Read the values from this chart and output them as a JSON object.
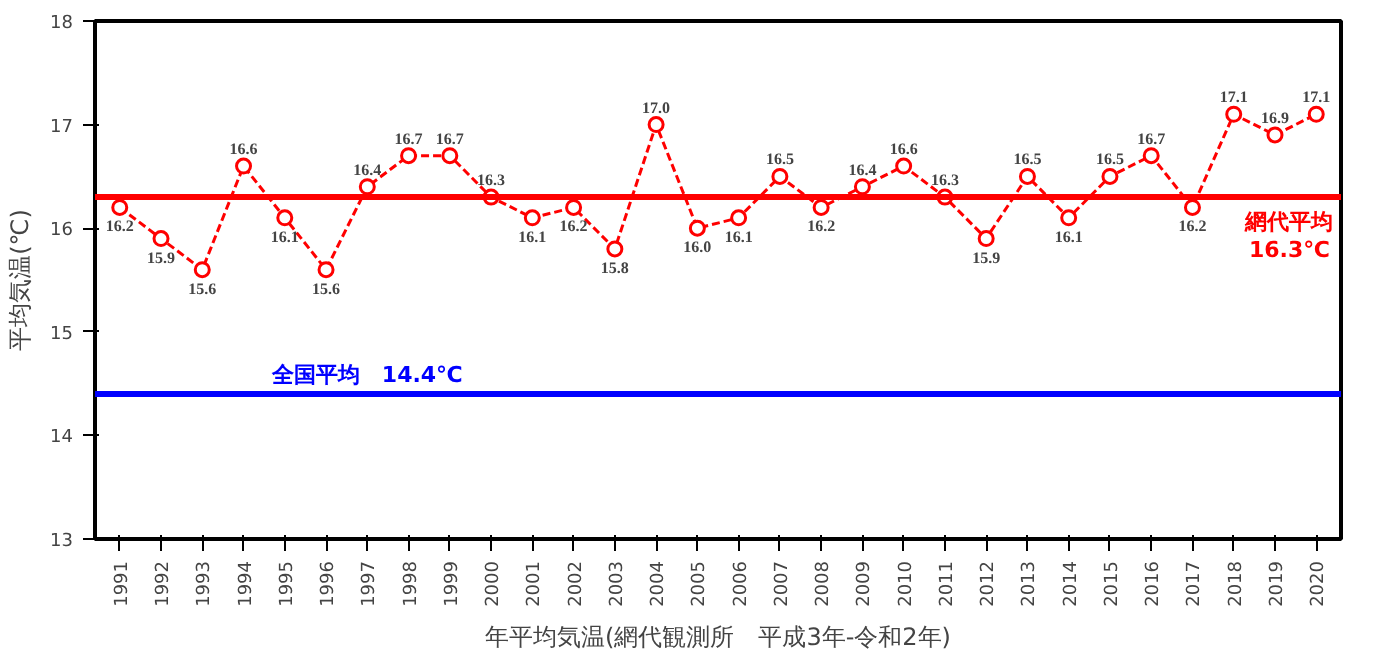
{
  "chart_data": {
    "type": "line",
    "xlabel": "年平均気温(網代観測所　平成3年-令和2年)",
    "ylabel": "平均気温(℃)",
    "categories": [
      "1991",
      "1992",
      "1993",
      "1994",
      "1995",
      "1996",
      "1997",
      "1998",
      "1999",
      "2000",
      "2001",
      "2002",
      "2003",
      "2004",
      "2005",
      "2006",
      "2007",
      "2008",
      "2009",
      "2010",
      "2011",
      "2012",
      "2013",
      "2014",
      "2015",
      "2016",
      "2017",
      "2018",
      "2019",
      "2020"
    ],
    "series": [
      {
        "color": "#ff0000",
        "values": [
          16.2,
          15.9,
          15.6,
          16.6,
          16.1,
          15.6,
          16.4,
          16.7,
          16.7,
          16.3,
          16.1,
          16.2,
          15.8,
          17.0,
          16.0,
          16.1,
          16.5,
          16.2,
          16.4,
          16.6,
          16.3,
          15.9,
          16.5,
          16.1,
          16.5,
          16.7,
          16.2,
          17.1,
          16.9,
          17.1
        ],
        "value_labels": [
          "16.2",
          "15.9",
          "15.6",
          "16.6",
          "16.1",
          "15.6",
          "16.4",
          "16.7",
          "16.7",
          "16.3",
          "16.1",
          "16.2",
          "15.8",
          "17.0",
          "16.0",
          "16.1",
          "16.5",
          "16.2",
          "16.4",
          "16.6",
          "16.3",
          "15.9",
          "16.5",
          "16.1",
          "16.5",
          "16.7",
          "16.2",
          "17.1",
          "16.9",
          "17.1"
        ]
      }
    ],
    "ylim": [
      13,
      18
    ],
    "yticks": [
      13,
      14,
      15,
      16,
      17,
      18
    ],
    "ref_lines": [
      {
        "axis": "y",
        "value": 16.3,
        "label": "網代平均\n16.3℃",
        "color": "#ff0000"
      },
      {
        "axis": "y",
        "value": 14.4,
        "label": "全国平均　14.4℃",
        "color": "#0000ff"
      }
    ],
    "grid": false,
    "marker": "circle",
    "line_style": "dashed"
  }
}
